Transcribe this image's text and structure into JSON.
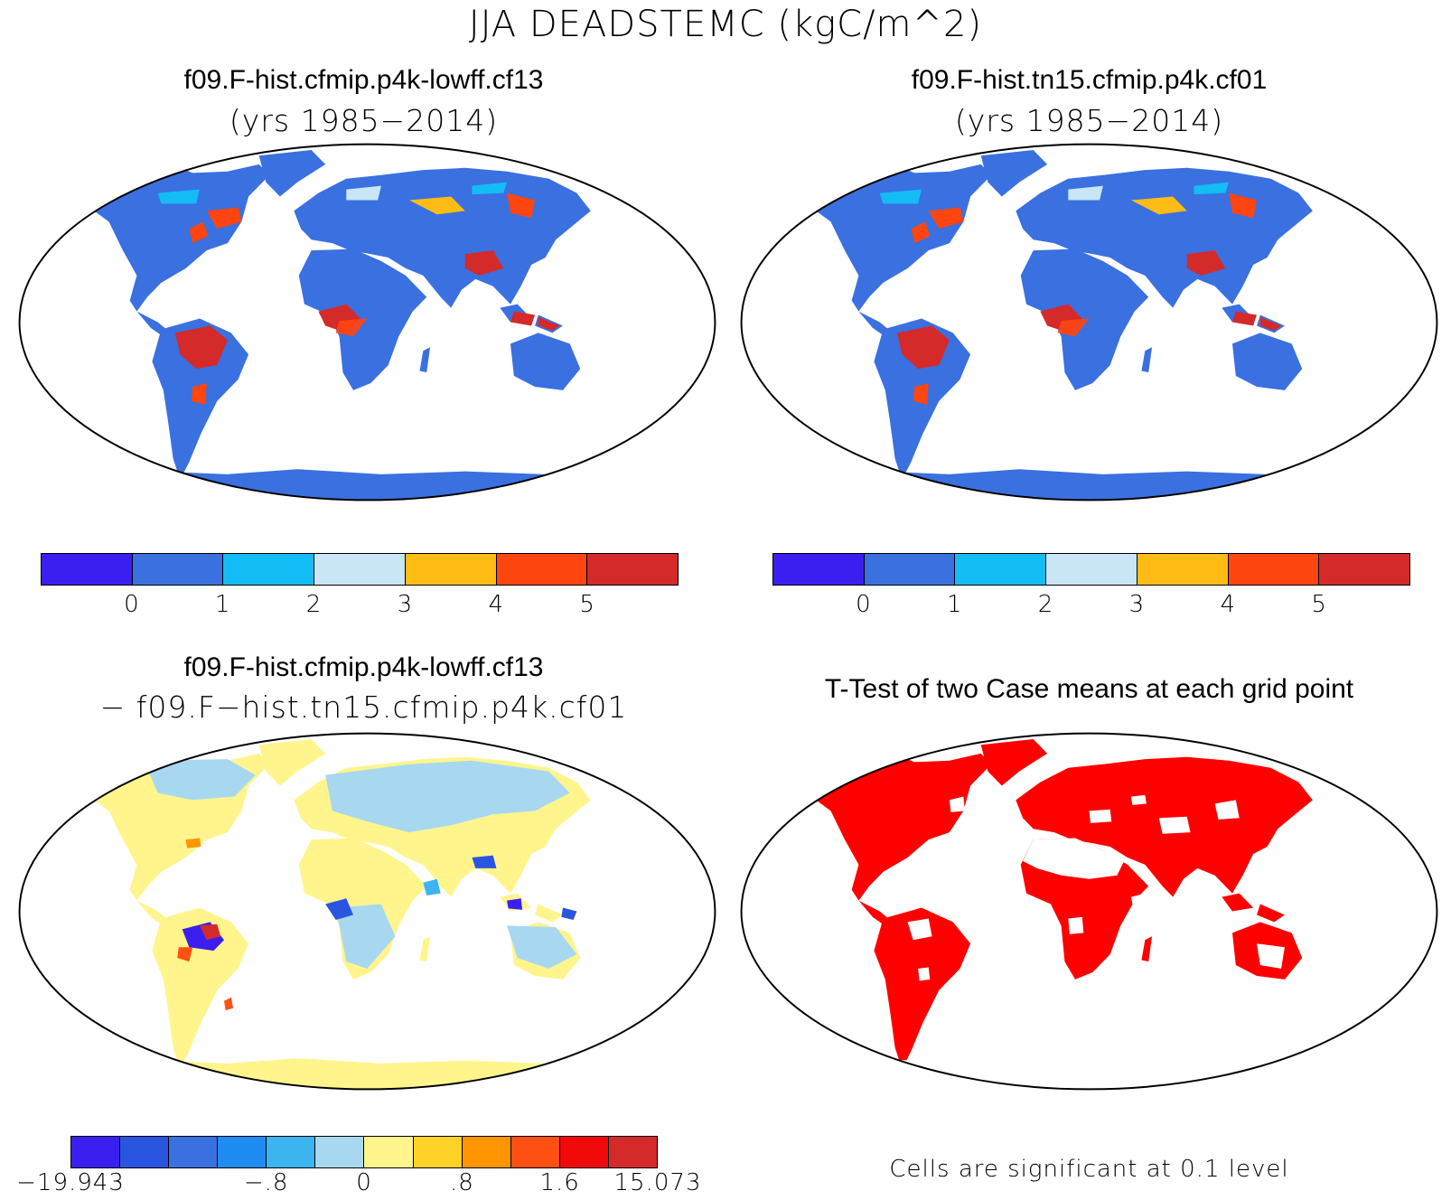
{
  "figure_title": "JJA DEADSTEMC (kgC/m^2)",
  "panels": {
    "top_left": {
      "title": "f09.F-hist.cfmip.p4k-lowff.cf13",
      "subtitle": "(yrs 1985−2014)"
    },
    "top_right": {
      "title": "f09.F-hist.tn15.cfmip.p4k.cf01",
      "subtitle": "(yrs 1985−2014)"
    },
    "bottom_left": {
      "title": "f09.F-hist.cfmip.p4k-lowff.cf13",
      "subtitle": "− f09.F−hist.tn15.cfmip.p4k.cf01"
    },
    "bottom_right": {
      "title": "T-Test of two Case means at each grid point",
      "note": "Cells are significant at 0.1 level"
    }
  },
  "colorbars": {
    "case": {
      "colors": [
        "#3a1ff0",
        "#3a70e0",
        "#14bcf5",
        "#c8e6f5",
        "#ffbc14",
        "#ff4510",
        "#d42a2a"
      ],
      "labels": [
        "0",
        "1",
        "2",
        "3",
        "4",
        "5"
      ]
    },
    "diff": {
      "colors": [
        "#3a1ff0",
        "#2a55e0",
        "#3a70e0",
        "#1e8cf0",
        "#3cb4f0",
        "#a8d8f0",
        "#fff58c",
        "#ffd228",
        "#ff9600",
        "#ff5014",
        "#f00a0a",
        "#d42a2a"
      ],
      "labels": [
        "−19.943",
        "−.8",
        "0",
        ".8",
        "1.6",
        "15.073"
      ]
    }
  },
  "map_colors": {
    "land_case": "#3a70e0",
    "land_diff": "#fff58c",
    "significant": "#ff0000",
    "ocean": "#ffffff"
  }
}
